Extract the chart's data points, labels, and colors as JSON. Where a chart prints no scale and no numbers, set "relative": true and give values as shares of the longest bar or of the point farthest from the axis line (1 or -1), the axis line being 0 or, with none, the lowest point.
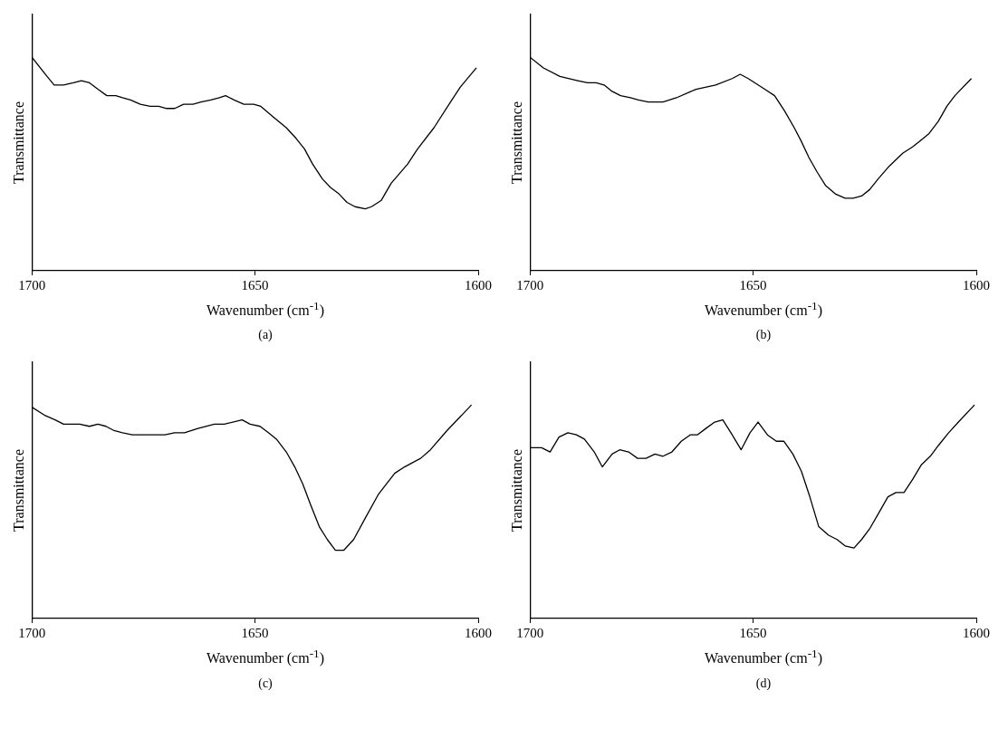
{
  "chart_data": [
    {
      "type": "line",
      "xlabel": "Wavenumber (cm$^{-1}$)",
      "ylabel": "Transmittance",
      "annotations": [
        "(a)"
      ],
      "relative": true,
      "tick_labels": "x",
      "grid": false,
      "xlim": [
        1700,
        1600
      ],
      "xticks": [
        1700,
        1650,
        1600
      ],
      "color": "#000000",
      "x": [
        1700,
        1696.6,
        1695,
        1692.9,
        1690.7,
        1688.9,
        1687.1,
        1685.2,
        1683.2,
        1681.2,
        1679.7,
        1677.9,
        1675.7,
        1673.5,
        1671.6,
        1669.8,
        1668,
        1666,
        1663.9,
        1662.1,
        1659.9,
        1658,
        1656.6,
        1654.7,
        1652.5,
        1650.3,
        1648.7,
        1645.9,
        1643,
        1640.8,
        1638.9,
        1637.1,
        1634.9,
        1633.1,
        1631.2,
        1629.4,
        1627.6,
        1625.3,
        1623.9,
        1621.7,
        1619.5,
        1615.8,
        1613.6,
        1609.9,
        1606.2,
        1604,
        1600.4
      ],
      "values": [
        1.0,
        0.91,
        0.87,
        0.87,
        0.88,
        0.89,
        0.88,
        0.85,
        0.82,
        0.82,
        0.81,
        0.8,
        0.78,
        0.77,
        0.77,
        0.76,
        0.76,
        0.78,
        0.78,
        0.79,
        0.8,
        0.81,
        0.82,
        0.8,
        0.78,
        0.78,
        0.77,
        0.72,
        0.67,
        0.62,
        0.57,
        0.5,
        0.43,
        0.39,
        0.36,
        0.32,
        0.3,
        0.29,
        0.3,
        0.33,
        0.41,
        0.5,
        0.57,
        0.67,
        0.79,
        0.86,
        0.95
      ]
    },
    {
      "type": "line",
      "xlabel": "Wavenumber (cm$^{-1}$)",
      "ylabel": "Transmittance",
      "annotations": [
        "(b)"
      ],
      "relative": true,
      "tick_labels": "x",
      "grid": false,
      "xlim": [
        1700,
        1600
      ],
      "xticks": [
        1700,
        1650,
        1600
      ],
      "color": "#000000",
      "x": [
        1700,
        1697,
        1693.3,
        1689.3,
        1687.1,
        1685.2,
        1683.4,
        1681.6,
        1679.7,
        1677.5,
        1675.7,
        1673.5,
        1670.2,
        1667.2,
        1662.8,
        1658.4,
        1654.7,
        1652.9,
        1651.1,
        1647.4,
        1645.2,
        1643,
        1640.8,
        1639.3,
        1637.5,
        1635.6,
        1633.8,
        1631.6,
        1629.4,
        1627.6,
        1625.7,
        1623.9,
        1622,
        1619.5,
        1616.5,
        1614.3,
        1612.5,
        1610.7,
        1608.5,
        1606.6,
        1604.8,
        1601.1
      ],
      "values": [
        1.0,
        0.95,
        0.91,
        0.89,
        0.88,
        0.88,
        0.87,
        0.84,
        0.82,
        0.81,
        0.8,
        0.79,
        0.79,
        0.81,
        0.85,
        0.87,
        0.9,
        0.92,
        0.9,
        0.85,
        0.82,
        0.75,
        0.67,
        0.61,
        0.53,
        0.46,
        0.4,
        0.36,
        0.34,
        0.34,
        0.35,
        0.38,
        0.43,
        0.49,
        0.55,
        0.58,
        0.61,
        0.64,
        0.7,
        0.77,
        0.82,
        0.9
      ]
    },
    {
      "type": "line",
      "xlabel": "Wavenumber (cm$^{-1}$)",
      "ylabel": "Transmittance",
      "annotations": [
        "(c)"
      ],
      "relative": true,
      "tick_labels": "x",
      "grid": false,
      "xlim": [
        1700,
        1600
      ],
      "xticks": [
        1700,
        1650,
        1600
      ],
      "color": "#000000",
      "x": [
        1700,
        1697,
        1694.8,
        1692.9,
        1689.3,
        1687.1,
        1685.2,
        1683.4,
        1681.6,
        1679.7,
        1677.5,
        1673.8,
        1670.2,
        1668,
        1665.8,
        1662.8,
        1659.1,
        1656.9,
        1652.9,
        1651.1,
        1648.9,
        1647,
        1645.2,
        1643,
        1641.1,
        1639.3,
        1637.5,
        1635.6,
        1633.8,
        1632,
        1630.1,
        1627.9,
        1625.3,
        1622.4,
        1618.7,
        1616.5,
        1614.7,
        1612.9,
        1610.7,
        1607,
        1601.5
      ],
      "values": [
        0.99,
        0.95,
        0.93,
        0.91,
        0.91,
        0.9,
        0.91,
        0.9,
        0.88,
        0.87,
        0.86,
        0.86,
        0.86,
        0.87,
        0.87,
        0.89,
        0.91,
        0.91,
        0.93,
        0.91,
        0.9,
        0.87,
        0.84,
        0.78,
        0.71,
        0.63,
        0.53,
        0.43,
        0.37,
        0.32,
        0.32,
        0.37,
        0.47,
        0.58,
        0.68,
        0.71,
        0.73,
        0.75,
        0.79,
        0.88,
        1.0
      ]
    },
    {
      "type": "line",
      "xlabel": "Wavenumber (cm$^{-1}$)",
      "ylabel": "Transmittance",
      "annotations": [
        "(d)"
      ],
      "relative": true,
      "tick_labels": "x",
      "grid": false,
      "xlim": [
        1700,
        1600
      ],
      "xticks": [
        1700,
        1650,
        1600
      ],
      "color": "#000000",
      "x": [
        1700,
        1697.4,
        1695.5,
        1693.5,
        1691.5,
        1689.6,
        1687.8,
        1685.6,
        1683.8,
        1681.6,
        1679.9,
        1677.9,
        1675.9,
        1674,
        1672,
        1670.2,
        1668.2,
        1666.1,
        1664.1,
        1662.5,
        1660.6,
        1658.6,
        1656.8,
        1654.7,
        1652.7,
        1650.7,
        1648.9,
        1646.8,
        1644.8,
        1643.1,
        1641.1,
        1639.2,
        1637.3,
        1635.3,
        1633.1,
        1631.2,
        1629.4,
        1627.4,
        1625.7,
        1623.9,
        1621.7,
        1619.8,
        1618,
        1616.2,
        1614.3,
        1612.3,
        1610.3,
        1608.5,
        1606.2,
        1604,
        1600.4
      ],
      "values": [
        0.8,
        0.8,
        0.78,
        0.85,
        0.87,
        0.86,
        0.84,
        0.78,
        0.71,
        0.77,
        0.79,
        0.78,
        0.75,
        0.75,
        0.77,
        0.76,
        0.78,
        0.83,
        0.86,
        0.86,
        0.89,
        0.92,
        0.93,
        0.86,
        0.79,
        0.87,
        0.92,
        0.86,
        0.83,
        0.83,
        0.77,
        0.69,
        0.57,
        0.43,
        0.39,
        0.37,
        0.34,
        0.33,
        0.37,
        0.42,
        0.5,
        0.57,
        0.59,
        0.59,
        0.65,
        0.72,
        0.76,
        0.81,
        0.87,
        0.92,
        1.0
      ]
    }
  ]
}
